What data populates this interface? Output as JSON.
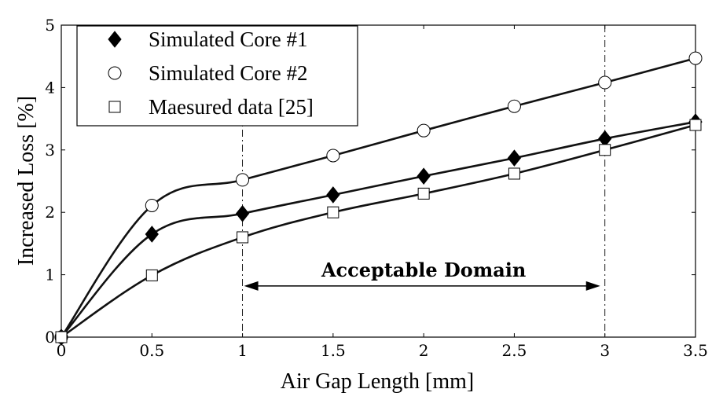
{
  "chart_data": {
    "type": "line",
    "xlabel": "Air Gap Length [mm]",
    "ylabel": "Increased Loss [%]",
    "xlim": [
      0,
      3.5
    ],
    "ylim": [
      0,
      5
    ],
    "x_ticks": [
      "0",
      "0.5",
      "1",
      "1.5",
      "2",
      "2.5",
      "3",
      "3.5"
    ],
    "y_ticks": [
      "0",
      "1",
      "2",
      "3",
      "4",
      "5"
    ],
    "grid": false,
    "legend_position": "top-left",
    "x": [
      0,
      0.5,
      1,
      1.5,
      2,
      2.5,
      3,
      3.5
    ],
    "series": [
      {
        "name": "Simulated Core #1",
        "marker": "diamond-filled",
        "values": [
          0,
          1.65,
          1.98,
          2.28,
          2.58,
          2.87,
          3.18,
          3.45
        ]
      },
      {
        "name": "Simulated Core #2",
        "marker": "circle-open",
        "values": [
          0,
          2.11,
          2.52,
          2.91,
          3.31,
          3.7,
          4.08,
          4.47
        ]
      },
      {
        "name": "Maesured data [25]",
        "marker": "square-open",
        "values": [
          0,
          0.99,
          1.6,
          2.0,
          2.3,
          2.62,
          3.0,
          3.4
        ]
      }
    ],
    "vertical_lines": [
      1,
      3
    ],
    "annotation": {
      "text": "Acceptable Domain",
      "from": 1,
      "to": 3,
      "y": 0.82
    }
  }
}
